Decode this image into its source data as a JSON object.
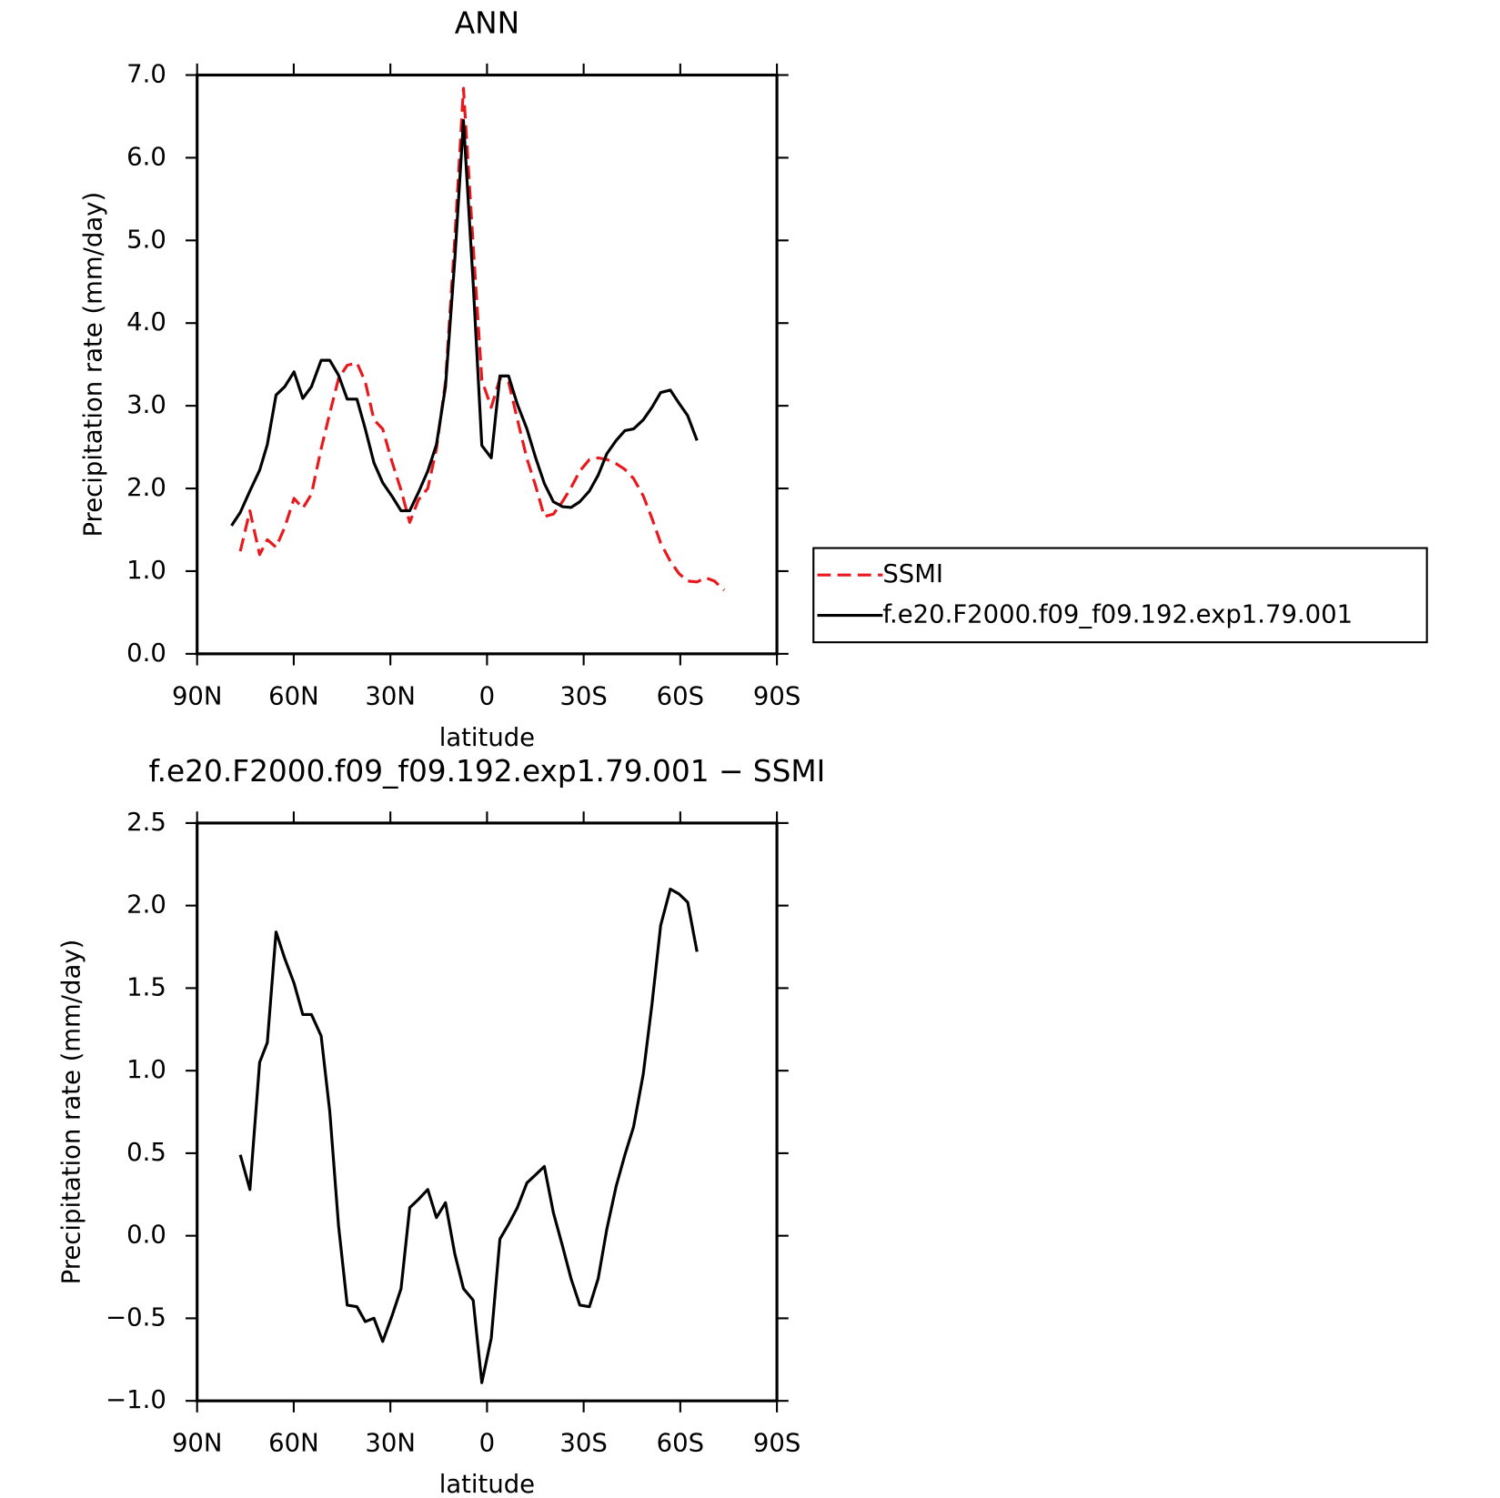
{
  "chart_data": [
    {
      "type": "line",
      "title": "ANN",
      "x_label": "latitude",
      "y_label": "Precipitation rate (mm/day)",
      "x": [
        79.3,
        76.6,
        73.6,
        70.6,
        68.2,
        65.5,
        62.8,
        59.9,
        57.2,
        54.5,
        51.5,
        48.8,
        46.1,
        43.4,
        40.4,
        37.8,
        35.1,
        32.4,
        29.4,
        26.7,
        24.0,
        21.3,
        18.4,
        15.7,
        12.9,
        10.0,
        7.3,
        4.3,
        1.6,
        -1.3,
        -4.0,
        -6.7,
        -9.4,
        -12.4,
        -15.1,
        -17.8,
        -20.6,
        -23.4,
        -26.1,
        -28.8,
        -31.8,
        -34.5,
        -37.2,
        -40.1,
        -42.8,
        -45.5,
        -48.5,
        -51.2,
        -53.9,
        -56.9,
        -59.6,
        -62.3,
        -65.2,
        -67.9,
        -70.6,
        -73.6
      ],
      "series": [
        {
          "name": "SSMI",
          "color": "#e8181c",
          "line_style": "dashed",
          "values": [
            null,
            1.24,
            1.73,
            1.2,
            1.38,
            1.29,
            1.53,
            1.88,
            1.76,
            1.93,
            2.48,
            2.91,
            3.33,
            3.49,
            3.52,
            3.29,
            2.83,
            2.72,
            2.31,
            1.98,
            1.59,
            1.86,
            2.0,
            2.48,
            3.29,
            5.02,
            6.84,
            4.94,
            3.31,
            2.98,
            3.33,
            3.29,
            2.84,
            2.36,
            2.03,
            1.66,
            1.69,
            1.84,
            2.01,
            2.21,
            2.35,
            2.37,
            2.35,
            2.3,
            2.23,
            2.12,
            1.91,
            1.64,
            1.34,
            1.12,
            0.97,
            0.88,
            0.87,
            0.92,
            0.88,
            0.77
          ]
        },
        {
          "name": "f.e20.F2000.f09_f09.192.exp1.79.001",
          "color": "#000000",
          "line_style": "solid",
          "values": [
            1.55,
            1.71,
            1.97,
            2.22,
            2.53,
            3.13,
            3.23,
            3.41,
            3.09,
            3.23,
            3.55,
            3.55,
            3.37,
            3.08,
            3.08,
            2.72,
            2.31,
            2.07,
            1.9,
            1.73,
            1.73,
            1.95,
            2.21,
            2.53,
            3.23,
            4.77,
            6.45,
            4.48,
            2.52,
            2.37,
            3.36,
            3.36,
            3.02,
            2.72,
            2.37,
            2.06,
            1.84,
            1.78,
            1.77,
            1.84,
            1.97,
            2.16,
            2.42,
            2.58,
            2.7,
            2.72,
            2.83,
            2.98,
            3.16,
            3.19,
            3.03,
            2.88,
            2.58,
            null,
            null,
            null
          ]
        }
      ],
      "xlim": [
        90,
        -90
      ],
      "xticks": [
        {
          "value": 90,
          "label": "90N"
        },
        {
          "value": 60,
          "label": "60N"
        },
        {
          "value": 30,
          "label": "30N"
        },
        0,
        {
          "value": -30,
          "label": "30S"
        },
        {
          "value": -60,
          "label": "60S"
        },
        {
          "value": -90,
          "label": "90S"
        }
      ],
      "ylim": [
        0,
        7
      ],
      "yticks": [
        {
          "value": 0,
          "label": "0.0"
        },
        {
          "value": 1,
          "label": "1.0"
        },
        {
          "value": 2,
          "label": "2.0"
        },
        {
          "value": 3,
          "label": "3.0"
        },
        {
          "value": 4,
          "label": "4.0"
        },
        {
          "value": 5,
          "label": "5.0"
        },
        {
          "value": 6,
          "label": "6.0"
        },
        {
          "value": 7,
          "label": "7.0"
        }
      ],
      "legend": "outside right"
    },
    {
      "type": "line",
      "title": "f.e20.F2000.f09_f09.192.exp1.79.001 − SSMI",
      "x_label": "latitude",
      "y_label": "Precipitation rate (mm/day)",
      "x": [
        76.6,
        73.6,
        70.6,
        68.2,
        65.5,
        62.8,
        59.9,
        57.2,
        54.5,
        51.5,
        48.8,
        46.1,
        43.4,
        40.4,
        37.8,
        35.1,
        32.4,
        29.4,
        26.7,
        24.0,
        21.3,
        18.4,
        15.7,
        12.9,
        10.0,
        7.3,
        4.3,
        1.6,
        -1.3,
        -4.0,
        -6.7,
        -9.4,
        -12.4,
        -15.1,
        -17.8,
        -20.6,
        -23.4,
        -26.1,
        -28.8,
        -31.8,
        -34.5,
        -37.2,
        -40.1,
        -42.8,
        -45.5,
        -48.5,
        -51.2,
        -53.9,
        -56.9,
        -59.6,
        -62.3,
        -65.2
      ],
      "series": [
        {
          "color": "#000000",
          "line_style": "solid",
          "values": [
            0.49,
            0.28,
            1.05,
            1.17,
            1.84,
            1.68,
            1.53,
            1.34,
            1.34,
            1.21,
            0.75,
            0.06,
            -0.42,
            -0.43,
            -0.52,
            -0.5,
            -0.64,
            -0.48,
            -0.32,
            0.17,
            0.22,
            0.28,
            0.11,
            0.2,
            -0.11,
            -0.32,
            -0.39,
            -0.89,
            -0.62,
            -0.02,
            0.07,
            0.17,
            0.32,
            0.37,
            0.42,
            0.14,
            -0.06,
            -0.26,
            -0.42,
            -0.43,
            -0.26,
            0.04,
            0.3,
            0.49,
            0.66,
            0.98,
            1.4,
            1.88,
            2.1,
            2.07,
            2.02,
            1.72
          ]
        }
      ],
      "xlim": [
        90,
        -90
      ],
      "xticks": [
        {
          "value": 90,
          "label": "90N"
        },
        {
          "value": 60,
          "label": "60N"
        },
        {
          "value": 30,
          "label": "30N"
        },
        0,
        {
          "value": -30,
          "label": "30S"
        },
        {
          "value": -60,
          "label": "60S"
        },
        {
          "value": -90,
          "label": "90S"
        }
      ],
      "ylim": [
        -1,
        2.5
      ],
      "yticks": [
        {
          "value": -1,
          "label": "−1.0"
        },
        {
          "value": -0.5,
          "label": "−0.5"
        },
        {
          "value": 0,
          "label": "0.0"
        },
        {
          "value": 0.5,
          "label": "0.5"
        },
        {
          "value": 1,
          "label": "1.0"
        },
        {
          "value": 1.5,
          "label": "1.5"
        },
        {
          "value": 2,
          "label": "2.0"
        },
        {
          "value": 2.5,
          "label": "2.5"
        }
      ]
    }
  ]
}
